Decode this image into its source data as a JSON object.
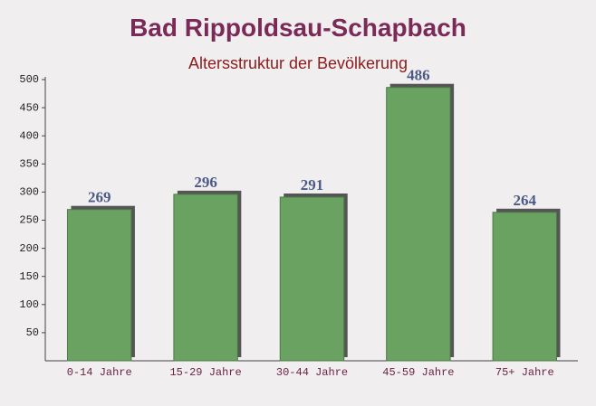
{
  "chart_data": {
    "type": "bar",
    "title": "Bad Rippoldsau-Schapbach",
    "subtitle": "Altersstruktur der Bevölkerung",
    "categories": [
      "0-14 Jahre",
      "15-29 Jahre",
      "30-44 Jahre",
      "45-59 Jahre",
      "75+ Jahre"
    ],
    "values": [
      269,
      296,
      291,
      486,
      264
    ],
    "color": "#6aa262",
    "ylim": [
      0,
      500
    ],
    "yticks": [
      50,
      100,
      150,
      200,
      250,
      300,
      350,
      400,
      450,
      500
    ]
  }
}
